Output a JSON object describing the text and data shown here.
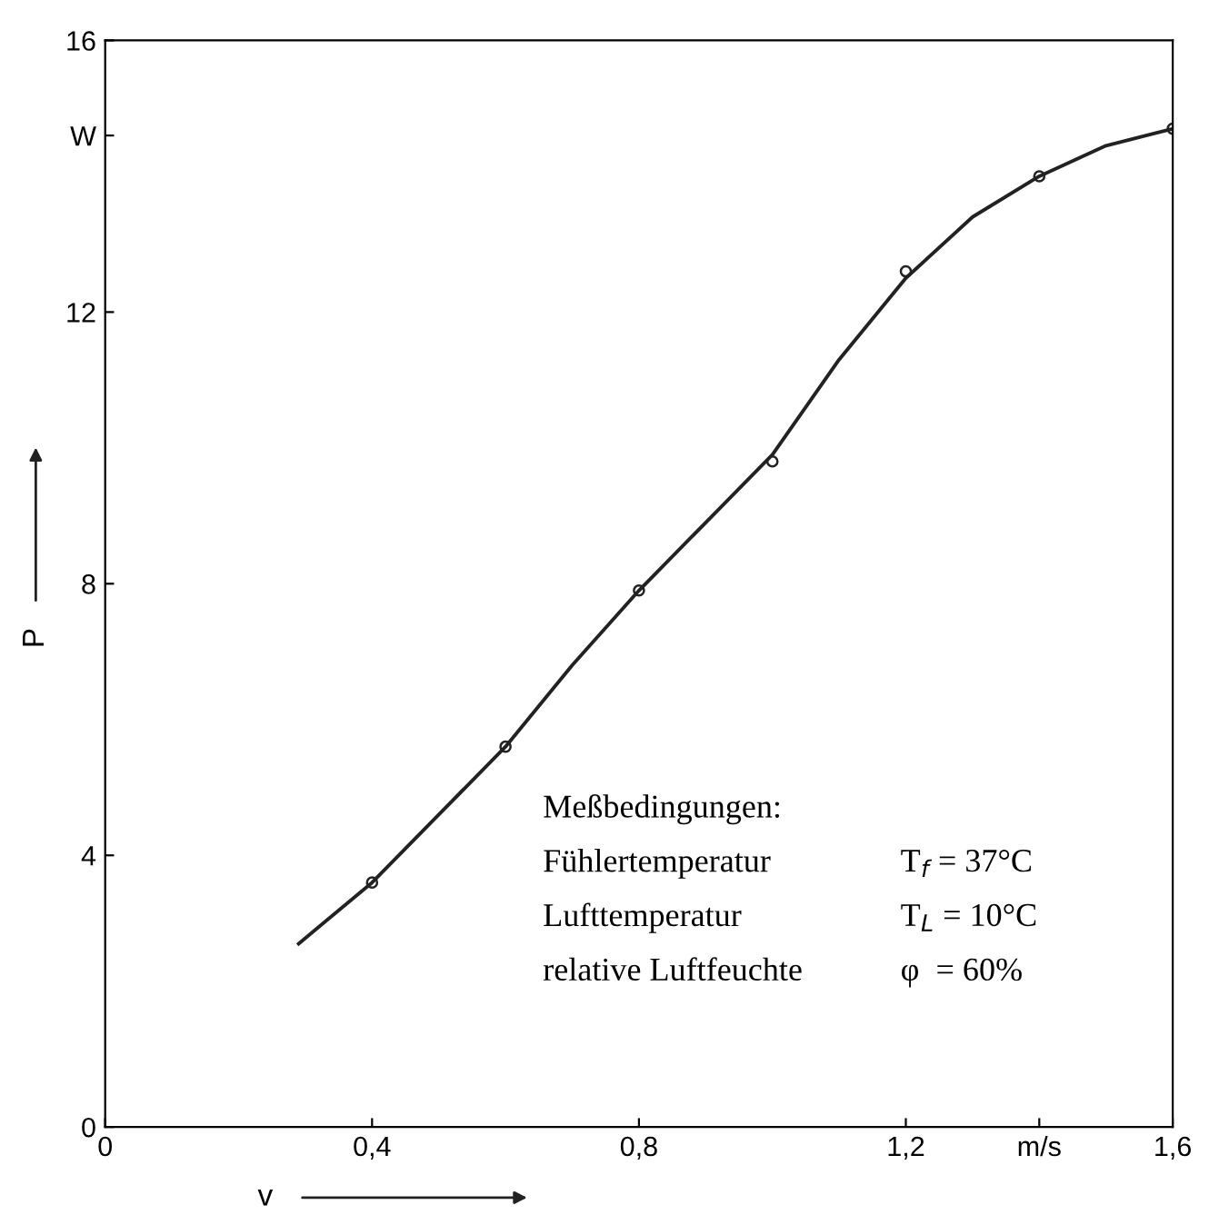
{
  "chart_data": {
    "type": "scatter",
    "xlabel": "v",
    "ylabel": "P",
    "xlim": [
      0,
      1.6
    ],
    "ylim": [
      0,
      16
    ],
    "xticks": [
      0,
      {
        "value": 0.4,
        "label": "0,4"
      },
      {
        "value": 0.8,
        "label": "0,8"
      },
      {
        "value": 1.2,
        "label": "1,2"
      },
      {
        "value": 1.4,
        "label": "m/s"
      },
      {
        "value": 1.6,
        "label": "1,6"
      }
    ],
    "yticks": [
      0,
      4,
      8,
      12,
      {
        "value": 14.6,
        "label": "W"
      },
      16
    ],
    "marker": "circle",
    "grid": false,
    "legend": false,
    "series": [
      {
        "color": "#222222",
        "x": [
          0.4,
          0.6,
          0.8,
          1.0,
          1.2,
          1.4,
          1.6
        ],
        "values": [
          3.6,
          5.6,
          7.9,
          9.8,
          12.6,
          14.0,
          14.7
        ]
      },
      {
        "type": "line",
        "color": "#222222",
        "marker": "none",
        "x": [
          0.29,
          0.4,
          0.5,
          0.6,
          0.7,
          0.8,
          0.9,
          1.0,
          1.1,
          1.2,
          1.3,
          1.4,
          1.5,
          1.6
        ],
        "values": [
          2.7,
          3.6,
          4.6,
          5.6,
          6.8,
          7.9,
          8.9,
          9.9,
          11.3,
          12.5,
          13.4,
          14.0,
          14.45,
          14.7
        ]
      }
    ],
    "annotations": [
      "Meßbedingungen:",
      "Fühlertemperatur",
      "T$_{f}$ = 37°C",
      "Lufttemperatur",
      "T$_{L}$ = 10°C",
      "relative Luftfeuchte",
      "φ  = 60%"
    ]
  }
}
